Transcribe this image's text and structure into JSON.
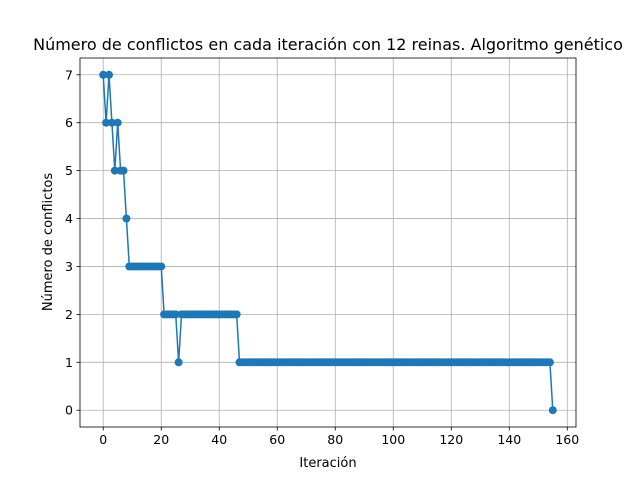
{
  "chart_data": {
    "type": "line",
    "title": "Número de conflictos en cada iteración con 12 reinas. Algoritmo genético",
    "xlabel": "Iteración",
    "ylabel": "Número de conflictos",
    "xlim": [
      -8,
      163
    ],
    "ylim": [
      -0.35,
      7.35
    ],
    "xticks": [
      0,
      20,
      40,
      60,
      80,
      100,
      120,
      140,
      160
    ],
    "yticks": [
      0,
      1,
      2,
      3,
      4,
      5,
      6,
      7
    ],
    "xtick_labels": [
      "0",
      "20",
      "40",
      "60",
      "80",
      "100",
      "120",
      "140",
      "160"
    ],
    "ytick_labels": [
      "0",
      "1",
      "2",
      "3",
      "4",
      "5",
      "6",
      "7"
    ],
    "grid": true,
    "marker": "circle",
    "series": [
      {
        "color": "#1f77b4",
        "segments": [
          {
            "x_start": 0,
            "x_end": 0,
            "y": 7
          },
          {
            "x_start": 1,
            "x_end": 1,
            "y": 6
          },
          {
            "x_start": 2,
            "x_end": 2,
            "y": 7
          },
          {
            "x_start": 3,
            "x_end": 3,
            "y": 6
          },
          {
            "x_start": 4,
            "x_end": 4,
            "y": 5
          },
          {
            "x_start": 5,
            "x_end": 5,
            "y": 6
          },
          {
            "x_start": 6,
            "x_end": 7,
            "y": 5
          },
          {
            "x_start": 8,
            "x_end": 8,
            "y": 4
          },
          {
            "x_start": 9,
            "x_end": 20,
            "y": 3
          },
          {
            "x_start": 21,
            "x_end": 25,
            "y": 2
          },
          {
            "x_start": 26,
            "x_end": 26,
            "y": 1
          },
          {
            "x_start": 27,
            "x_end": 46,
            "y": 2
          },
          {
            "x_start": 47,
            "x_end": 154,
            "y": 1
          },
          {
            "x_start": 155,
            "x_end": 155,
            "y": 0
          }
        ]
      }
    ]
  }
}
